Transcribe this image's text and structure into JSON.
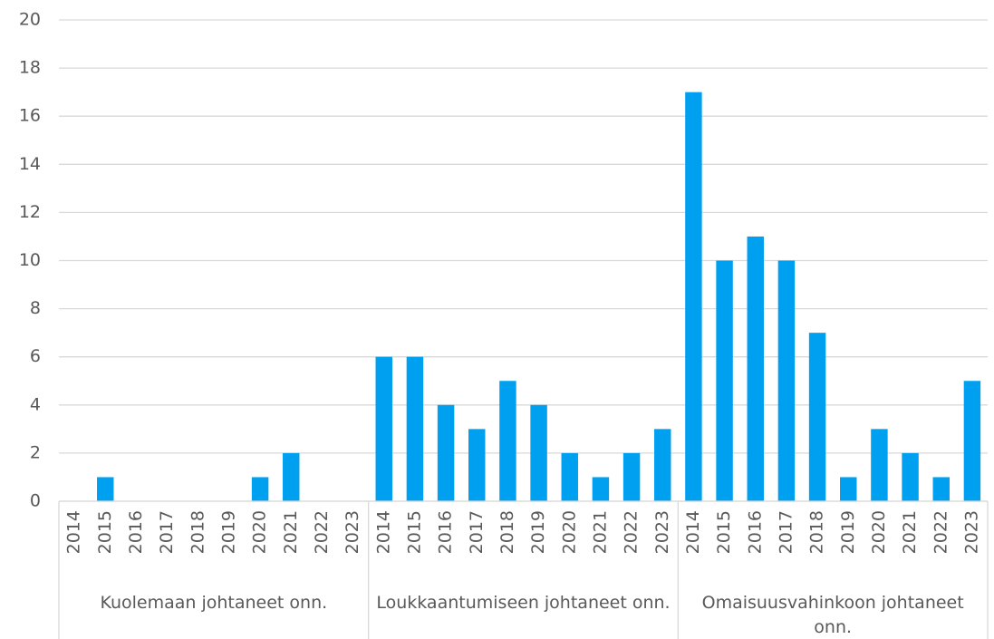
{
  "chart_data": {
    "type": "bar",
    "color": "#00a0f0",
    "grid": true,
    "ylim": [
      0,
      20
    ],
    "yticks": [
      0,
      2,
      4,
      6,
      8,
      10,
      12,
      14,
      16,
      18,
      20
    ],
    "groups": [
      {
        "name": "Kuolemaan johtaneet onn.",
        "categories": [
          "2014",
          "2015",
          "2016",
          "2017",
          "2018",
          "2019",
          "2020",
          "2021",
          "2022",
          "2023"
        ],
        "values": [
          0,
          1,
          0,
          0,
          0,
          0,
          1,
          2,
          0,
          0
        ]
      },
      {
        "name": "Loukkaantumiseen johtaneet onn.",
        "categories": [
          "2014",
          "2015",
          "2016",
          "2017",
          "2018",
          "2019",
          "2020",
          "2021",
          "2022",
          "2023"
        ],
        "values": [
          6,
          6,
          4,
          3,
          5,
          4,
          2,
          1,
          2,
          3
        ]
      },
      {
        "name": "Omaisuusvahinkoon johtaneet onn.",
        "categories": [
          "2014",
          "2015",
          "2016",
          "2017",
          "2018",
          "2019",
          "2020",
          "2021",
          "2022",
          "2023"
        ],
        "values": [
          17,
          10,
          11,
          10,
          7,
          1,
          3,
          2,
          1,
          5
        ]
      }
    ]
  }
}
